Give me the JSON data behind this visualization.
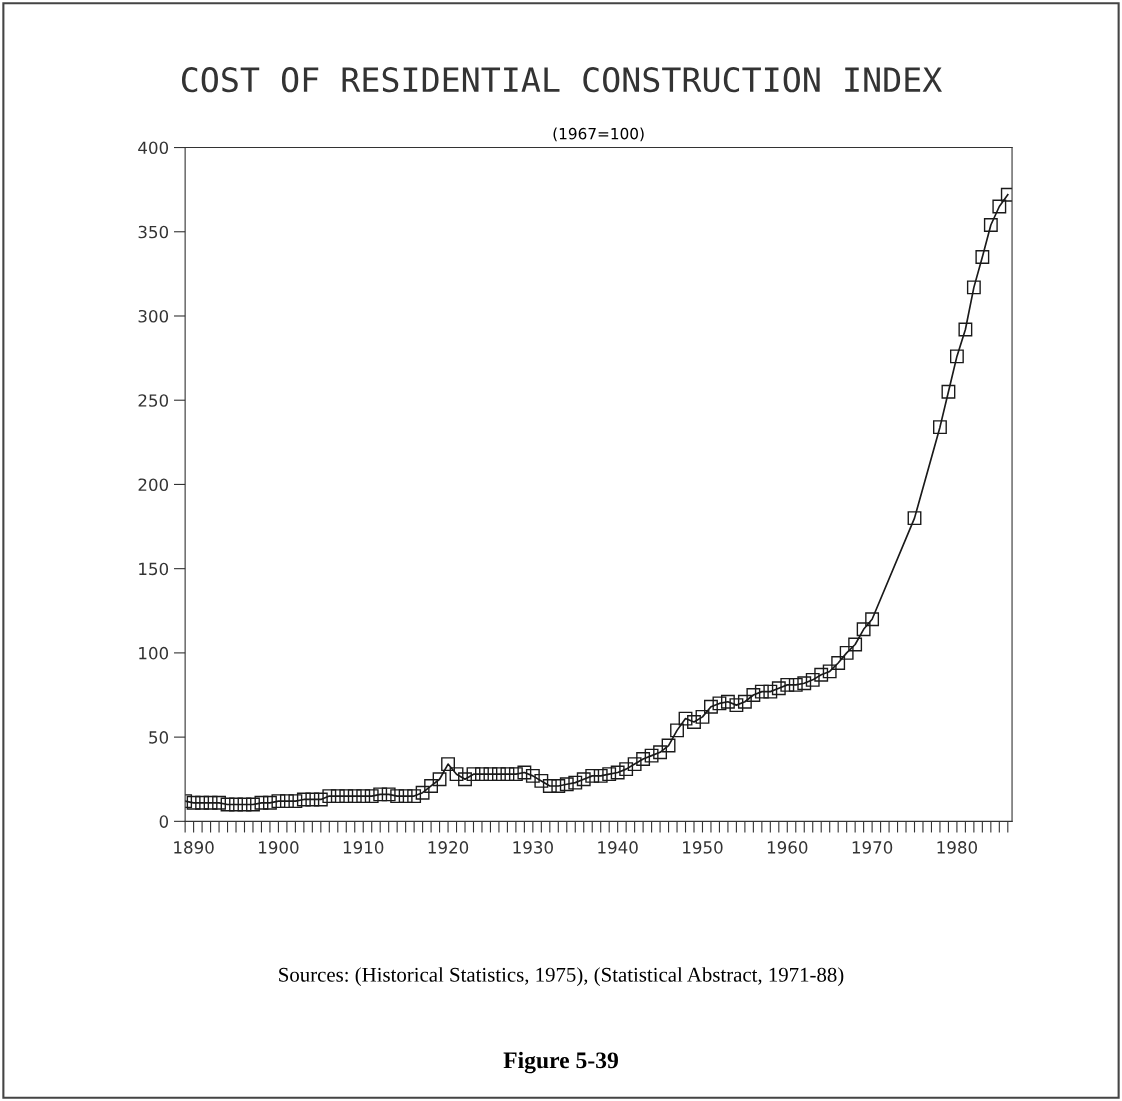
{
  "chart_data": {
    "type": "line",
    "title": "COST OF RESIDENTIAL CONSTRUCTION INDEX",
    "subtitle": "(1967=100)",
    "annotations": [
      "Sources: (Historical Statistics, 1975), (Statistical Abstract, 1971-88)",
      "Figure 5-39"
    ],
    "x": [
      1889,
      1890,
      1891,
      1892,
      1893,
      1894,
      1895,
      1896,
      1897,
      1898,
      1899,
      1900,
      1901,
      1902,
      1903,
      1904,
      1905,
      1906,
      1907,
      1908,
      1909,
      1910,
      1911,
      1912,
      1913,
      1914,
      1915,
      1916,
      1917,
      1918,
      1919,
      1920,
      1921,
      1922,
      1923,
      1924,
      1925,
      1926,
      1927,
      1928,
      1929,
      1930,
      1931,
      1932,
      1933,
      1934,
      1935,
      1936,
      1937,
      1938,
      1939,
      1940,
      1941,
      1942,
      1943,
      1944,
      1945,
      1946,
      1947,
      1948,
      1949,
      1950,
      1951,
      1952,
      1953,
      1954,
      1955,
      1956,
      1957,
      1958,
      1959,
      1960,
      1961,
      1962,
      1963,
      1964,
      1965,
      1966,
      1967,
      1968,
      1969,
      1970,
      1975,
      1978,
      1979,
      1980,
      1981,
      1982,
      1983,
      1984,
      1985,
      1986
    ],
    "values": [
      12,
      11,
      11,
      11,
      11,
      10,
      10,
      10,
      10,
      11,
      11,
      12,
      12,
      12,
      13,
      13,
      13,
      15,
      15,
      15,
      15,
      15,
      15,
      16,
      16,
      15,
      15,
      15,
      17,
      21,
      25,
      34,
      28,
      25,
      28,
      28,
      28,
      28,
      28,
      28,
      29,
      27,
      24,
      21,
      21,
      22,
      23,
      25,
      27,
      27,
      28,
      29,
      31,
      34,
      37,
      39,
      41,
      45,
      54,
      61,
      59,
      62,
      68,
      70,
      71,
      69,
      71,
      75,
      77,
      77,
      79,
      81,
      81,
      82,
      84,
      87,
      89,
      94,
      100,
      105,
      114,
      120,
      180,
      234,
      255,
      276,
      292,
      317,
      335,
      354,
      365,
      372
    ],
    "color": "#1a1a1a",
    "marker": "square",
    "line_style": "solid",
    "grid": false,
    "legend": false,
    "xlim": [
      1889,
      1986.5
    ],
    "ylim": [
      0,
      400
    ],
    "yticks": [
      0,
      50,
      100,
      150,
      200,
      250,
      300,
      350,
      400
    ],
    "xticks": [
      {
        "value": 1889,
        "label": null
      },
      1890,
      {
        "value": 1891,
        "label": null
      },
      {
        "value": 1892,
        "label": null
      },
      {
        "value": 1893,
        "label": null
      },
      {
        "value": 1894,
        "label": null
      },
      {
        "value": 1895,
        "label": null
      },
      {
        "value": 1896,
        "label": null
      },
      {
        "value": 1897,
        "label": null
      },
      {
        "value": 1898,
        "label": null
      },
      {
        "value": 1899,
        "label": null
      },
      1900,
      {
        "value": 1901,
        "label": null
      },
      {
        "value": 1902,
        "label": null
      },
      {
        "value": 1903,
        "label": null
      },
      {
        "value": 1904,
        "label": null
      },
      {
        "value": 1905,
        "label": null
      },
      {
        "value": 1906,
        "label": null
      },
      {
        "value": 1907,
        "label": null
      },
      {
        "value": 1908,
        "label": null
      },
      {
        "value": 1909,
        "label": null
      },
      1910,
      {
        "value": 1911,
        "label": null
      },
      {
        "value": 1912,
        "label": null
      },
      {
        "value": 1913,
        "label": null
      },
      {
        "value": 1914,
        "label": null
      },
      {
        "value": 1915,
        "label": null
      },
      {
        "value": 1916,
        "label": null
      },
      {
        "value": 1917,
        "label": null
      },
      {
        "value": 1918,
        "label": null
      },
      {
        "value": 1919,
        "label": null
      },
      1920,
      {
        "value": 1921,
        "label": null
      },
      {
        "value": 1922,
        "label": null
      },
      {
        "value": 1923,
        "label": null
      },
      {
        "value": 1924,
        "label": null
      },
      {
        "value": 1925,
        "label": null
      },
      {
        "value": 1926,
        "label": null
      },
      {
        "value": 1927,
        "label": null
      },
      {
        "value": 1928,
        "label": null
      },
      {
        "value": 1929,
        "label": null
      },
      1930,
      {
        "value": 1931,
        "label": null
      },
      {
        "value": 1932,
        "label": null
      },
      {
        "value": 1933,
        "label": null
      },
      {
        "value": 1934,
        "label": null
      },
      {
        "value": 1935,
        "label": null
      },
      {
        "value": 1936,
        "label": null
      },
      {
        "value": 1937,
        "label": null
      },
      {
        "value": 1938,
        "label": null
      },
      {
        "value": 1939,
        "label": null
      },
      1940,
      {
        "value": 1941,
        "label": null
      },
      {
        "value": 1942,
        "label": null
      },
      {
        "value": 1943,
        "label": null
      },
      {
        "value": 1944,
        "label": null
      },
      {
        "value": 1945,
        "label": null
      },
      {
        "value": 1946,
        "label": null
      },
      {
        "value": 1947,
        "label": null
      },
      {
        "value": 1948,
        "label": null
      },
      {
        "value": 1949,
        "label": null
      },
      1950,
      {
        "value": 1951,
        "label": null
      },
      {
        "value": 1952,
        "label": null
      },
      {
        "value": 1953,
        "label": null
      },
      {
        "value": 1954,
        "label": null
      },
      {
        "value": 1955,
        "label": null
      },
      {
        "value": 1956,
        "label": null
      },
      {
        "value": 1957,
        "label": null
      },
      {
        "value": 1958,
        "label": null
      },
      {
        "value": 1959,
        "label": null
      },
      1960,
      {
        "value": 1961,
        "label": null
      },
      {
        "value": 1962,
        "label": null
      },
      {
        "value": 1963,
        "label": null
      },
      {
        "value": 1964,
        "label": null
      },
      {
        "value": 1965,
        "label": null
      },
      {
        "value": 1966,
        "label": null
      },
      {
        "value": 1967,
        "label": null
      },
      {
        "value": 1968,
        "label": null
      },
      {
        "value": 1969,
        "label": null
      },
      1970,
      {
        "value": 1971,
        "label": null
      },
      {
        "value": 1972,
        "label": null
      },
      {
        "value": 1973,
        "label": null
      },
      {
        "value": 1974,
        "label": null
      },
      {
        "value": 1975,
        "label": null
      },
      {
        "value": 1976,
        "label": null
      },
      {
        "value": 1977,
        "label": null
      },
      {
        "value": 1978,
        "label": null
      },
      {
        "value": 1979,
        "label": null
      },
      1980,
      {
        "value": 1981,
        "label": null
      },
      {
        "value": 1982,
        "label": null
      },
      {
        "value": 1983,
        "label": null
      },
      {
        "value": 1984,
        "label": null
      },
      {
        "value": 1985,
        "label": null
      },
      {
        "value": 1986,
        "label": null
      }
    ]
  }
}
